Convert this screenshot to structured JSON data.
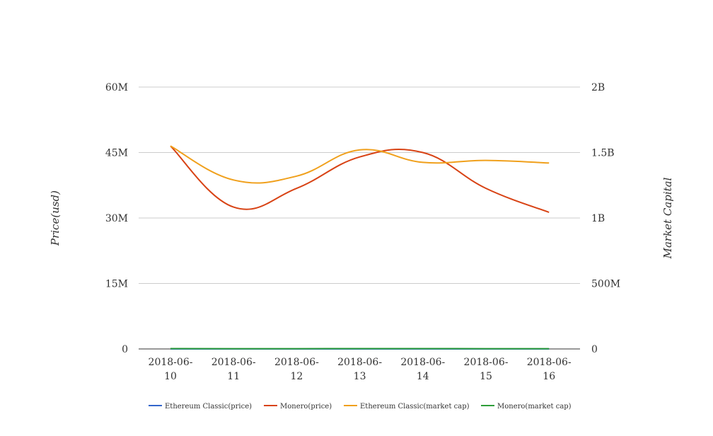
{
  "chart_data": {
    "type": "line",
    "title": "",
    "xlabel": "",
    "ylabel": "Price(usd)",
    "y2label": "Market Capital",
    "categories": [
      [
        "2018-06-",
        "10"
      ],
      [
        "2018-06-",
        "11"
      ],
      [
        "2018-06-",
        "12"
      ],
      [
        "2018-06-",
        "13"
      ],
      [
        "2018-06-",
        "14"
      ],
      [
        "2018-06-",
        "15"
      ],
      [
        "2018-06-",
        "16"
      ]
    ],
    "ylim": [
      0,
      60000000
    ],
    "y2lim": [
      0,
      2000000000
    ],
    "yticks": [
      {
        "value": 0,
        "label": "0"
      },
      {
        "value": 15000000,
        "label": "15M"
      },
      {
        "value": 30000000,
        "label": "30M"
      },
      {
        "value": 45000000,
        "label": "45M"
      },
      {
        "value": 60000000,
        "label": "60M"
      }
    ],
    "y2ticks": [
      {
        "value": 0,
        "label": "0"
      },
      {
        "value": 500000000,
        "label": "500M"
      },
      {
        "value": 1000000000,
        "label": "1B"
      },
      {
        "value": 1500000000,
        "label": "1.5B"
      },
      {
        "value": 2000000000,
        "label": "2B"
      }
    ],
    "grid": true,
    "legend_position": "bottom",
    "series": [
      {
        "name": "Ethereum Classic(price)",
        "axis": "left",
        "color": "#3366cc",
        "values": [
          14,
          12,
          13,
          15,
          14,
          13,
          13
        ]
      },
      {
        "name": "Monero(price)",
        "axis": "left",
        "color": "#d84315",
        "values": [
          46500000,
          32500000,
          36800000,
          44000000,
          45000000,
          36800000,
          31300000
        ]
      },
      {
        "name": "Ethereum Classic(market cap)",
        "axis": "right",
        "color": "#f0a01c",
        "values": [
          1550000000,
          1290000000,
          1320000000,
          1520000000,
          1425000000,
          1440000000,
          1420000000
        ]
      },
      {
        "name": "Monero(market cap)",
        "axis": "right",
        "color": "#2e9e3a",
        "values": [
          2500000,
          2300000,
          2400000,
          2600000,
          2500000,
          2400000,
          2300000
        ]
      }
    ]
  }
}
